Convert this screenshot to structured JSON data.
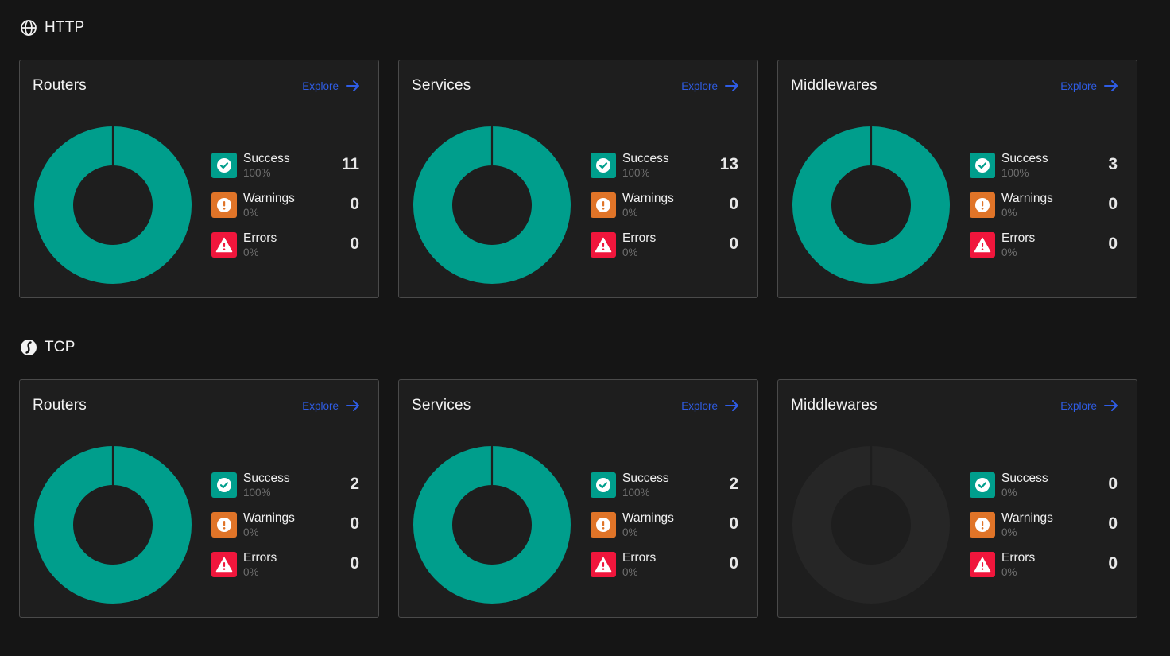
{
  "colors": {
    "success": "#009e8c",
    "warning": "#e07428",
    "error": "#f0163c",
    "explore": "#2f5de6",
    "donut_empty": "#262626"
  },
  "sections": [
    {
      "title": "HTTP",
      "icon": "globe-icon",
      "cards": [
        {
          "title": "Routers",
          "explore": "Explore",
          "stats": [
            {
              "label": "Success",
              "pct": "100%",
              "count": "11"
            },
            {
              "label": "Warnings",
              "pct": "0%",
              "count": "0"
            },
            {
              "label": "Errors",
              "pct": "0%",
              "count": "0"
            }
          ]
        },
        {
          "title": "Services",
          "explore": "Explore",
          "stats": [
            {
              "label": "Success",
              "pct": "100%",
              "count": "13"
            },
            {
              "label": "Warnings",
              "pct": "0%",
              "count": "0"
            },
            {
              "label": "Errors",
              "pct": "0%",
              "count": "0"
            }
          ]
        },
        {
          "title": "Middlewares",
          "explore": "Explore",
          "stats": [
            {
              "label": "Success",
              "pct": "100%",
              "count": "3"
            },
            {
              "label": "Warnings",
              "pct": "0%",
              "count": "0"
            },
            {
              "label": "Errors",
              "pct": "0%",
              "count": "0"
            }
          ]
        }
      ]
    },
    {
      "title": "TCP",
      "icon": "tcp-icon",
      "cards": [
        {
          "title": "Routers",
          "explore": "Explore",
          "stats": [
            {
              "label": "Success",
              "pct": "100%",
              "count": "2"
            },
            {
              "label": "Warnings",
              "pct": "0%",
              "count": "0"
            },
            {
              "label": "Errors",
              "pct": "0%",
              "count": "0"
            }
          ]
        },
        {
          "title": "Services",
          "explore": "Explore",
          "stats": [
            {
              "label": "Success",
              "pct": "100%",
              "count": "2"
            },
            {
              "label": "Warnings",
              "pct": "0%",
              "count": "0"
            },
            {
              "label": "Errors",
              "pct": "0%",
              "count": "0"
            }
          ]
        },
        {
          "title": "Middlewares",
          "explore": "Explore",
          "stats": [
            {
              "label": "Success",
              "pct": "0%",
              "count": "0"
            },
            {
              "label": "Warnings",
              "pct": "0%",
              "count": "0"
            },
            {
              "label": "Errors",
              "pct": "0%",
              "count": "0"
            }
          ]
        }
      ]
    }
  ]
}
